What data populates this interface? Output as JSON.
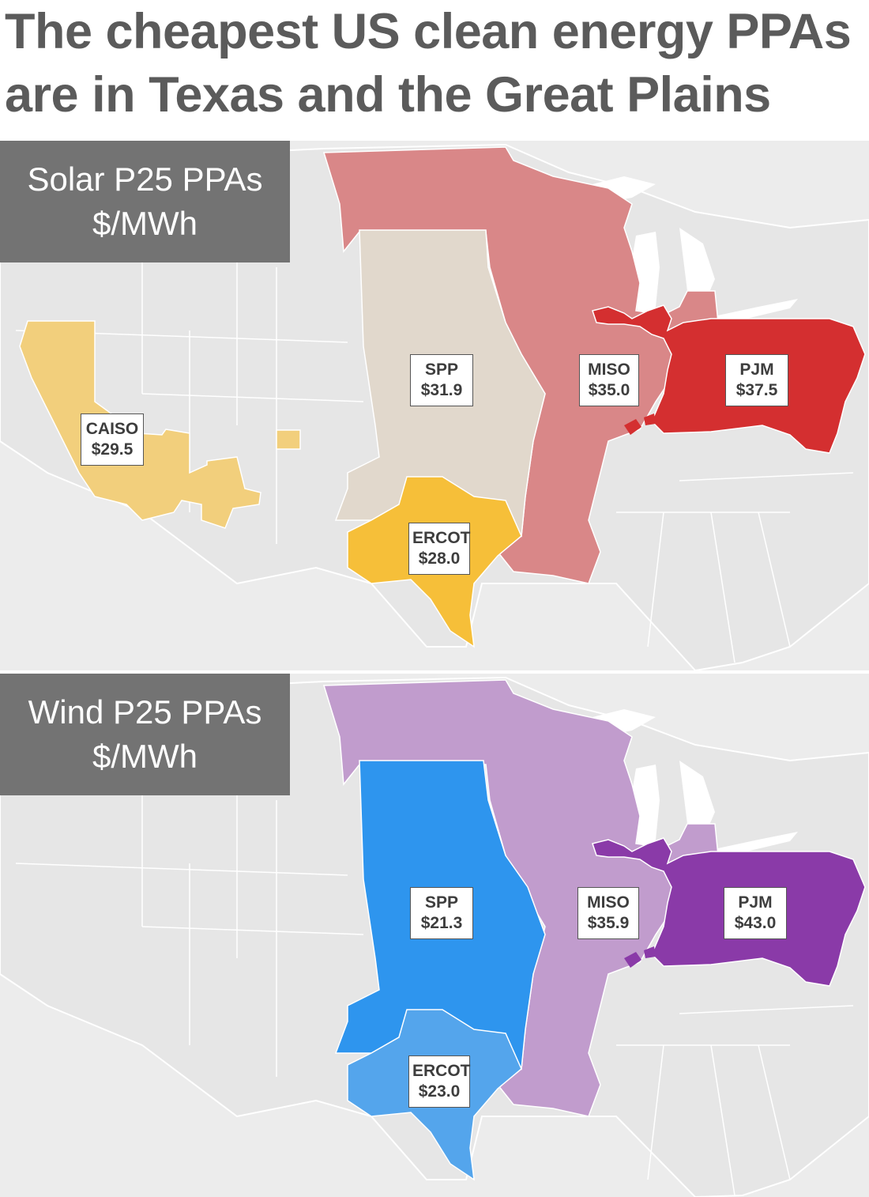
{
  "title": {
    "line1": "The cheapest US clean energy PPAs",
    "line2": "are in Texas and the Great Plains"
  },
  "colors": {
    "background_land": "#ececec",
    "state_borders": "#ffffff",
    "solar": {
      "CAISO": "#f2cf7c",
      "ERCOT": "#f6bf39",
      "SPP": "#e1d8cc",
      "MISO": "#d98788",
      "PJM": "#d42f30"
    },
    "wind": {
      "SPP": "#2e95ee",
      "ERCOT": "#54a5ec",
      "MISO": "#c19ccd",
      "PJM": "#8a3aa8"
    }
  },
  "maps": [
    {
      "legend": {
        "line1": "Solar P25 PPAs",
        "line2": "$/MWh"
      },
      "regions": [
        {
          "name": "CAISO",
          "value": "$29.5"
        },
        {
          "name": "SPP",
          "value": "$31.9"
        },
        {
          "name": "MISO",
          "value": "$35.0"
        },
        {
          "name": "PJM",
          "value": "$37.5"
        },
        {
          "name": "ERCOT",
          "value": "$28.0"
        }
      ]
    },
    {
      "legend": {
        "line1": "Wind P25 PPAs",
        "line2": "$/MWh"
      },
      "regions": [
        {
          "name": "SPP",
          "value": "$21.3"
        },
        {
          "name": "MISO",
          "value": "$35.9"
        },
        {
          "name": "PJM",
          "value": "$43.0"
        },
        {
          "name": "ERCOT",
          "value": "$23.0"
        }
      ]
    }
  ]
}
